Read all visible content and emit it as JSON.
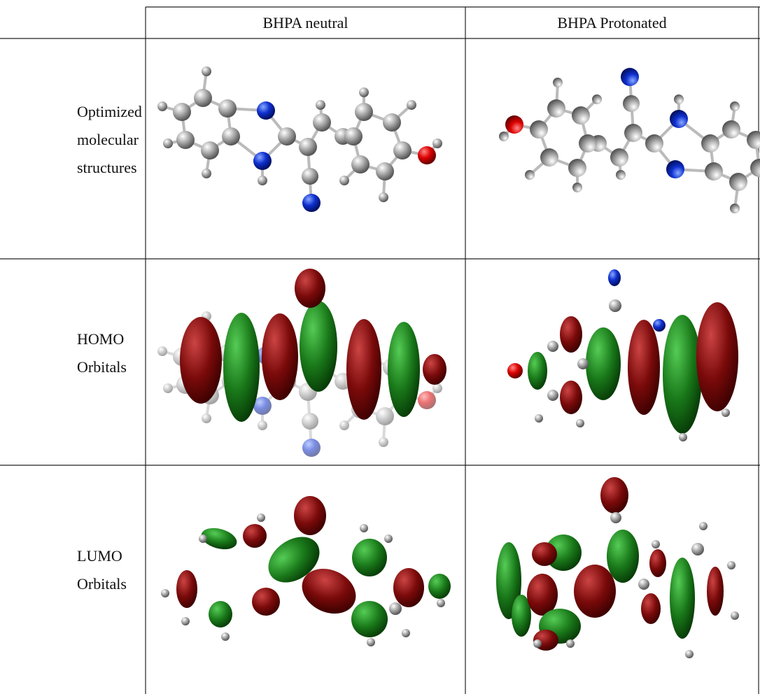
{
  "table": {
    "columns": [
      "BHPA neutral",
      "BHPA Protonated"
    ],
    "rows": [
      {
        "label_lines": [
          "Optimized",
          "molecular",
          "structures"
        ]
      },
      {
        "label_lines": [
          "HOMO",
          "Orbitals"
        ]
      },
      {
        "label_lines": [
          "LUMO",
          "Orbitals"
        ]
      }
    ]
  }
}
